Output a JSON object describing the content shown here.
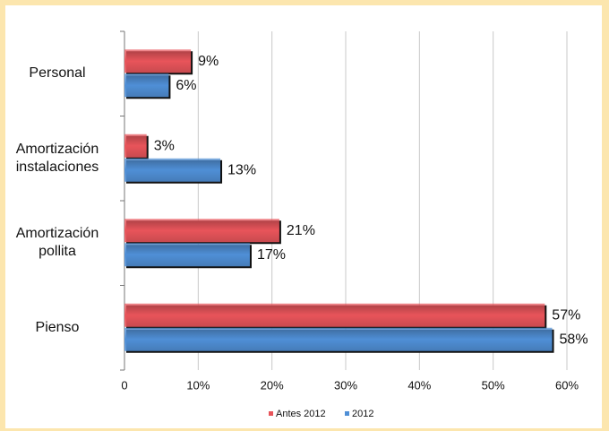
{
  "chart_data": {
    "type": "hbar",
    "categories": [
      "Personal",
      "Amortización instalaciones",
      "Amortización pollita",
      "Pienso"
    ],
    "series": [
      {
        "name": "Antes 2012",
        "color": "#e8545a",
        "values": [
          9,
          3,
          21,
          57
        ],
        "value_labels": [
          "9%",
          "3%",
          "21%",
          "57%"
        ]
      },
      {
        "name": "2012",
        "color": "#4f8fd6",
        "values": [
          6,
          13,
          17,
          58
        ],
        "value_labels": [
          "6%",
          "13%",
          "17%",
          "58%"
        ]
      }
    ],
    "xlim": [
      0,
      60
    ],
    "xticks": [
      0,
      {
        "value": 10,
        "label": "10%"
      },
      {
        "value": 20,
        "label": "20%"
      },
      {
        "value": 30,
        "label": "30%"
      },
      {
        "value": 40,
        "label": "40%"
      },
      {
        "value": 50,
        "label": "50%"
      },
      {
        "value": 60,
        "label": "60%"
      }
    ],
    "grid": true,
    "legend": "bottom"
  }
}
